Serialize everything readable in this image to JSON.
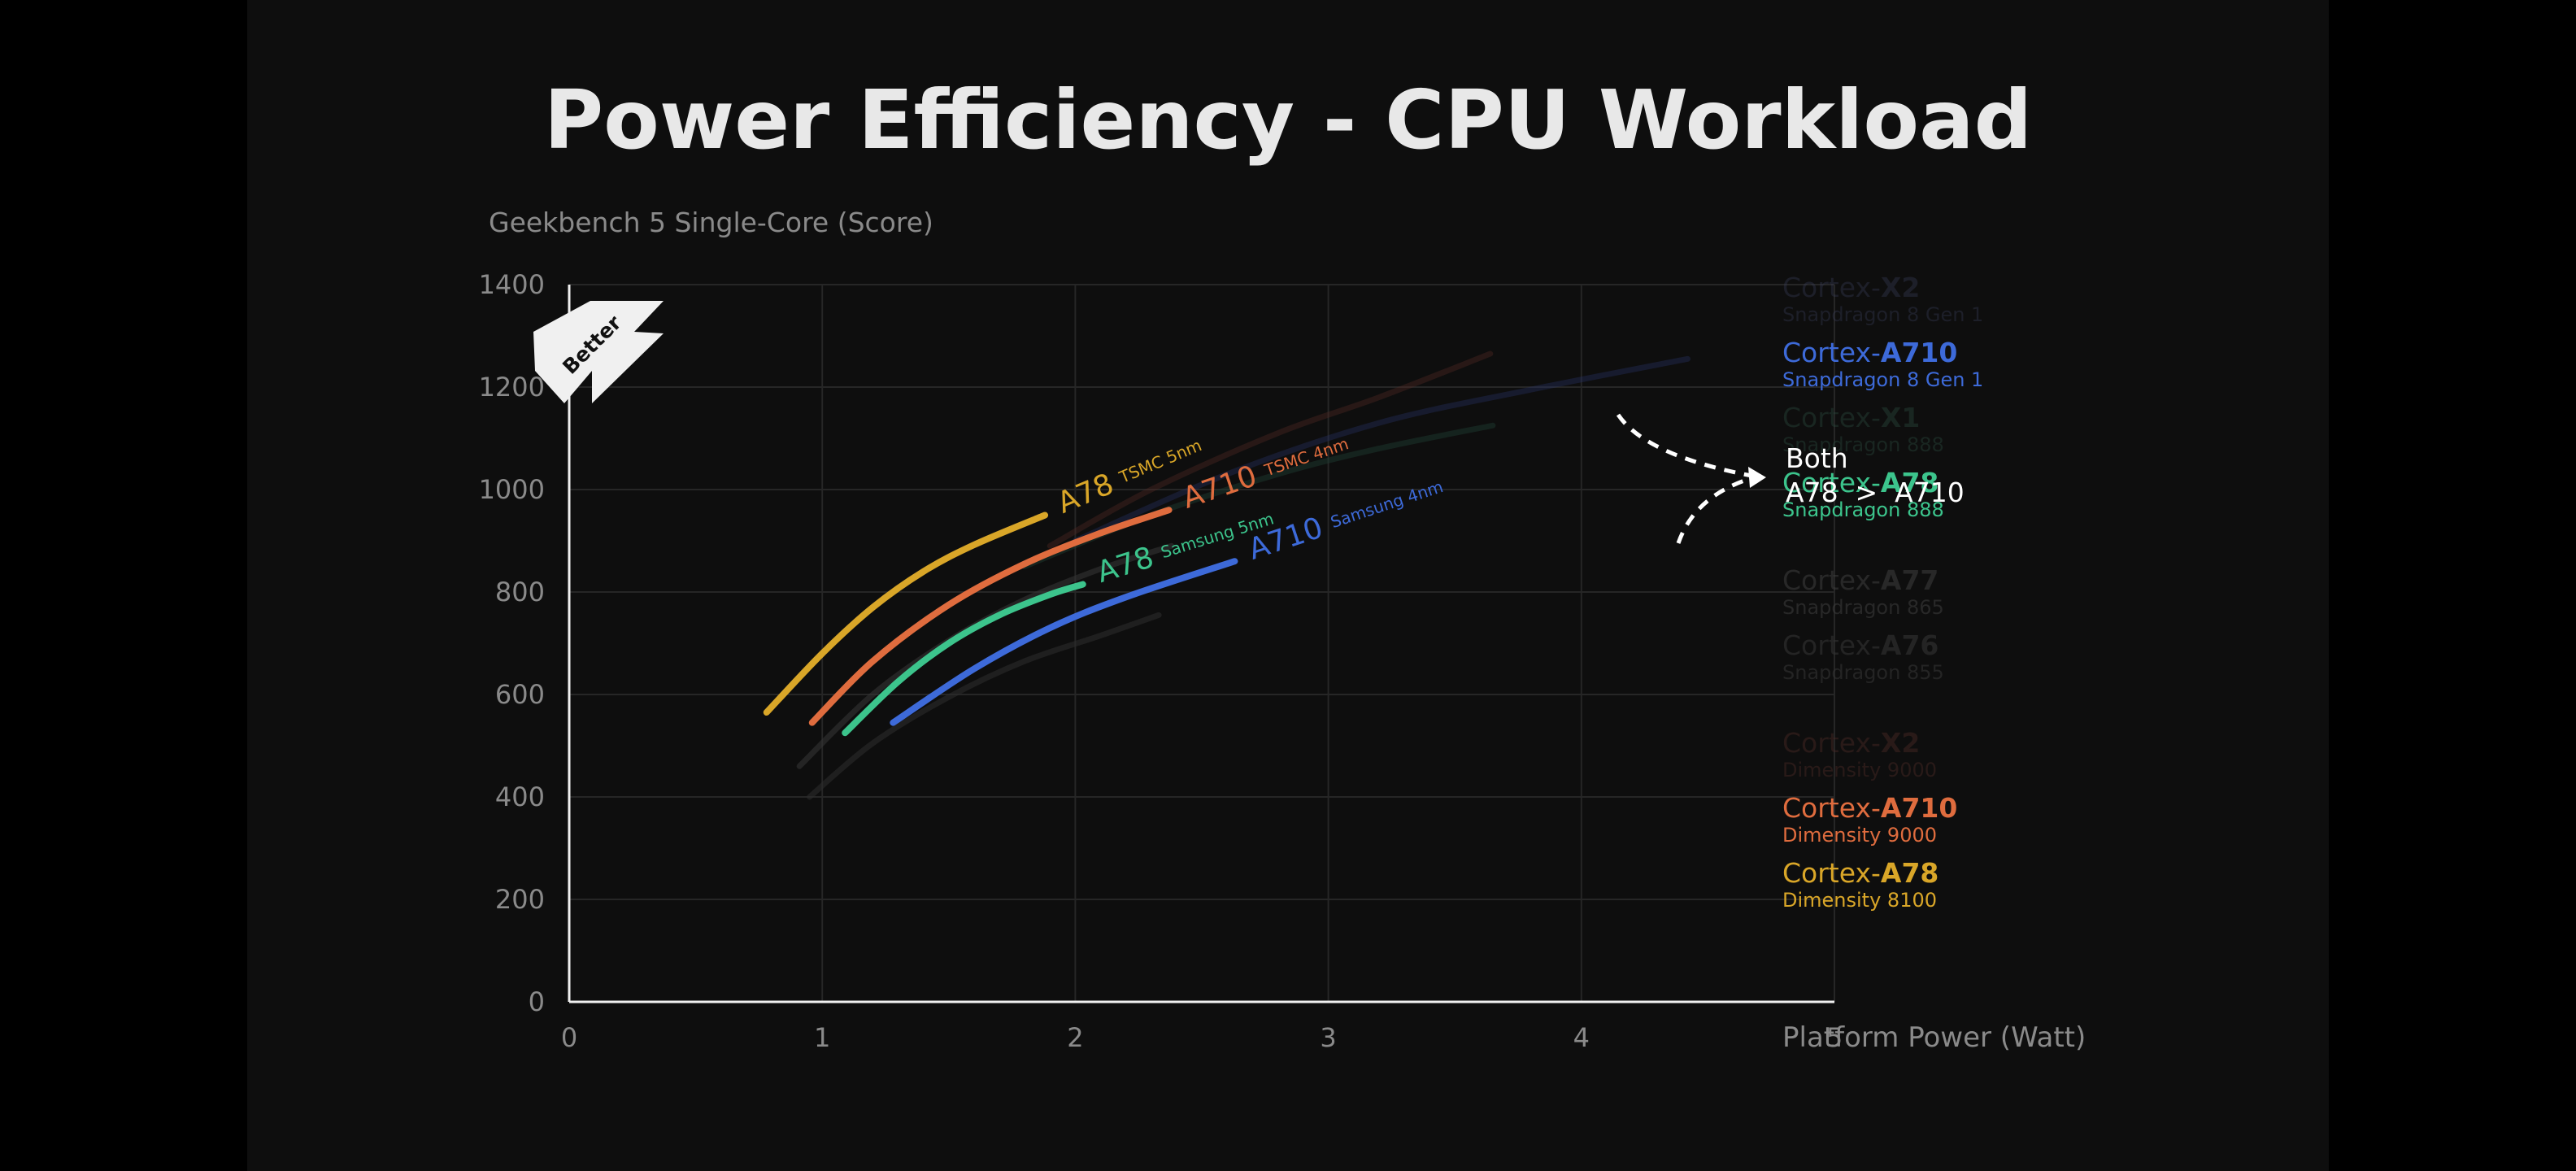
{
  "chart_data": {
    "type": "line",
    "title": "Power Efficiency - CPU Workload",
    "ylabel": "Geekbench 5 Single-Core (Score)",
    "xlabel": "Platform Power (Watt)",
    "xlim": [
      0,
      5
    ],
    "ylim": [
      0,
      1400
    ],
    "x_ticks": [
      "0",
      "1",
      "2",
      "3",
      "4",
      "5"
    ],
    "y_ticks": [
      "0",
      "200",
      "400",
      "600",
      "800",
      "1000",
      "1200",
      "1400"
    ],
    "grid": true,
    "badge": "Better",
    "annotation": {
      "line1": "Both",
      "line2": "A78  >  A710"
    },
    "series": [
      {
        "name": "A78",
        "label_big": "A78",
        "label_small": "TSMC 5nm",
        "color": "#d9a628",
        "opacity": 1,
        "legend_prefix": "Cortex-",
        "legend_bold": "A78",
        "legend_sub": "Dimensity 8100",
        "points": [
          [
            0.78,
            565
          ],
          [
            1.0,
            680
          ],
          [
            1.2,
            770
          ],
          [
            1.4,
            840
          ],
          [
            1.6,
            892
          ],
          [
            1.88,
            950
          ]
        ]
      },
      {
        "name": "A710",
        "label_big": "A710",
        "label_small": "TSMC 4nm",
        "color": "#df6c3e",
        "opacity": 1,
        "legend_prefix": "Cortex-",
        "legend_bold": "A710",
        "legend_sub": "Dimensity 9000",
        "points": [
          [
            0.96,
            545
          ],
          [
            1.2,
            665
          ],
          [
            1.5,
            775
          ],
          [
            1.8,
            855
          ],
          [
            2.1,
            915
          ],
          [
            2.37,
            960
          ]
        ]
      },
      {
        "name": "A78",
        "label_big": "A78",
        "label_small": "Samsung 5nm",
        "color": "#3cc48c",
        "opacity": 1,
        "legend_prefix": "Cortex-",
        "legend_bold": "A78",
        "legend_sub": "Snapdragon 888",
        "points": [
          [
            1.09,
            525
          ],
          [
            1.3,
            625
          ],
          [
            1.5,
            700
          ],
          [
            1.7,
            755
          ],
          [
            1.9,
            795
          ],
          [
            2.03,
            815
          ]
        ]
      },
      {
        "name": "A710",
        "label_big": "A710",
        "label_small": "Samsung 4nm",
        "color": "#3d6ad9",
        "opacity": 1,
        "legend_prefix": "Cortex-",
        "legend_bold": "A710",
        "legend_sub": "Snapdragon 8 Gen 1",
        "points": [
          [
            1.28,
            545
          ],
          [
            1.6,
            650
          ],
          [
            1.9,
            730
          ],
          [
            2.2,
            790
          ],
          [
            2.63,
            860
          ]
        ]
      },
      {
        "name": "X2",
        "color": "#5a2a24",
        "opacity": 0.35,
        "legend_prefix": "Cortex-",
        "legend_bold": "X2",
        "legend_sub": "Dimensity 9000",
        "points": [
          [
            1.9,
            890
          ],
          [
            2.3,
            1000
          ],
          [
            2.8,
            1110
          ],
          [
            3.2,
            1180
          ],
          [
            3.64,
            1265
          ]
        ]
      },
      {
        "name": "X2",
        "color": "#27336a",
        "opacity": 0.35,
        "legend_prefix": "Cortex-",
        "legend_bold": "X2",
        "legend_sub": "Snapdragon 8 Gen 1",
        "points": [
          [
            2.0,
            900
          ],
          [
            2.6,
            1030
          ],
          [
            3.2,
            1130
          ],
          [
            3.8,
            1195
          ],
          [
            4.42,
            1255
          ]
        ]
      },
      {
        "name": "X1",
        "color": "#1f3f33",
        "opacity": 0.45,
        "legend_prefix": "Cortex-",
        "legend_bold": "X1",
        "legend_sub": "Snapdragon 888",
        "points": [
          [
            1.8,
            850
          ],
          [
            2.3,
            950
          ],
          [
            2.8,
            1030
          ],
          [
            3.2,
            1080
          ],
          [
            3.65,
            1125
          ]
        ]
      },
      {
        "name": "A77",
        "color": "#333333",
        "opacity": 0.6,
        "legend_prefix": "Cortex-",
        "legend_bold": "A77",
        "legend_sub": "Snapdragon 865",
        "points": [
          [
            0.91,
            460
          ],
          [
            1.2,
            600
          ],
          [
            1.5,
            705
          ],
          [
            1.8,
            785
          ],
          [
            2.1,
            845
          ],
          [
            2.38,
            890
          ]
        ]
      },
      {
        "name": "A76",
        "color": "#2b2b2b",
        "opacity": 0.6,
        "legend_prefix": "Cortex-",
        "legend_bold": "A76",
        "legend_sub": "Snapdragon 855",
        "points": [
          [
            0.95,
            400
          ],
          [
            1.2,
            505
          ],
          [
            1.5,
            595
          ],
          [
            1.8,
            665
          ],
          [
            2.1,
            715
          ],
          [
            2.33,
            755
          ]
        ]
      }
    ],
    "legend": [
      {
        "prefix": "Cortex-",
        "bold": "X2",
        "sub": "Snapdragon 8 Gen 1",
        "color": "#3a3f5c",
        "opacity": 0.35
      },
      {
        "prefix": "Cortex-",
        "bold": "A710",
        "sub": "Snapdragon 8 Gen 1",
        "color": "#3d6ad9",
        "opacity": 1
      },
      {
        "prefix": "Cortex-",
        "bold": "X1",
        "sub": "Snapdragon 888",
        "color": "#2a4a3e",
        "opacity": 0.4
      },
      {
        "prefix": "Cortex-",
        "bold": "A78",
        "sub": "Snapdragon 888",
        "color": "#3cc48c",
        "opacity": 1
      },
      {
        "prefix": "Cortex-",
        "bold": "A77",
        "sub": "Snapdragon 865",
        "color": "#3a3a3a",
        "opacity": 0.6
      },
      {
        "prefix": "Cortex-",
        "bold": "A76",
        "sub": "Snapdragon 855",
        "color": "#333333",
        "opacity": 0.6
      },
      {
        "prefix": "Cortex-",
        "bold": "X2",
        "sub": "Dimensity 9000",
        "color": "#4a2a26",
        "opacity": 0.45
      },
      {
        "prefix": "Cortex-",
        "bold": "A710",
        "sub": "Dimensity 9000",
        "color": "#df6c3e",
        "opacity": 1
      },
      {
        "prefix": "Cortex-",
        "bold": "A78",
        "sub": "Dimensity 8100",
        "color": "#d9a628",
        "opacity": 1
      }
    ]
  }
}
